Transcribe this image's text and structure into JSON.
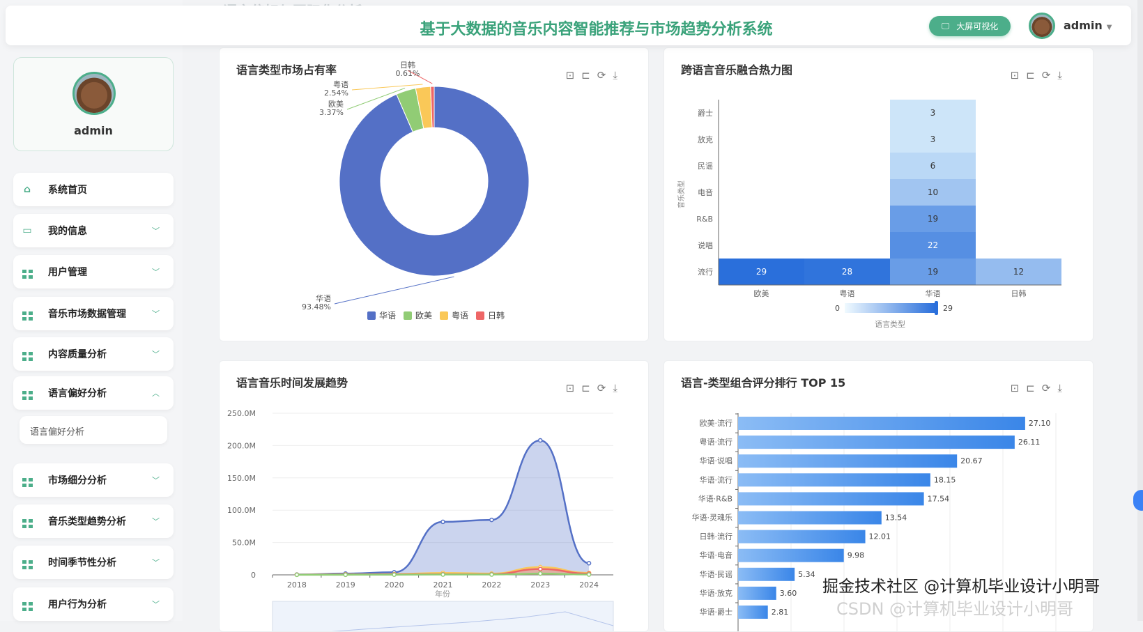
{
  "header": {
    "ghost_title": "语言偏好与国际化分析",
    "title": "基于大数据的音乐内容智能推荐与市场趋势分析系统",
    "bigscreen_label": "大屏可视化",
    "username": "admin"
  },
  "sidebar": {
    "username": "admin",
    "items": [
      {
        "label": "系统首页",
        "icon": "home-icon"
      },
      {
        "label": "我的信息",
        "icon": "card-icon",
        "chevron": "down"
      },
      {
        "label": "用户管理",
        "icon": "grid-icon",
        "chevron": "down"
      },
      {
        "label": "音乐市场数据管理",
        "icon": "grid-icon",
        "chevron": "down"
      },
      {
        "label": "内容质量分析",
        "icon": "grid-icon",
        "chevron": "down"
      },
      {
        "label": "语言偏好分析",
        "icon": "grid-icon",
        "chevron": "up",
        "expanded": true
      },
      {
        "label": "市场细分分析",
        "icon": "grid-icon",
        "chevron": "down"
      },
      {
        "label": "音乐类型趋势分析",
        "icon": "grid-icon",
        "chevron": "down"
      },
      {
        "label": "时间季节性分析",
        "icon": "grid-icon",
        "chevron": "down"
      },
      {
        "label": "用户行为分析",
        "icon": "grid-icon",
        "chevron": "down"
      }
    ],
    "sub_item": "语言偏好分析"
  },
  "watermark": {
    "line1": "掘金技术社区 @计算机毕业设计小明哥",
    "line2": "CSDN @计算机毕业设计小明哥"
  },
  "chart_data": [
    {
      "type": "pie",
      "title": "语言类型市场占有率",
      "donut": true,
      "slices": [
        {
          "name": "华语",
          "value": 93.48,
          "label": "93.48%",
          "color": "#5470c6"
        },
        {
          "name": "欧美",
          "value": 3.37,
          "label": "3.37%",
          "color": "#91cc75"
        },
        {
          "name": "粤语",
          "value": 2.54,
          "label": "2.54%",
          "color": "#fac858"
        },
        {
          "name": "日韩",
          "value": 0.61,
          "label": "0.61%",
          "color": "#ee6666"
        }
      ],
      "legend": "bottom"
    },
    {
      "type": "heatmap",
      "title": "跨语言音乐融合热力图",
      "xlabel": "语言类型",
      "ylabel": "音乐类型",
      "x": [
        "欧美",
        "粤语",
        "华语",
        "日韩"
      ],
      "y": [
        "流行",
        "说唱",
        "R&B",
        "电音",
        "民谣",
        "放克",
        "爵士"
      ],
      "cells": [
        [
          "欧美",
          "流行",
          29
        ],
        [
          "粤语",
          "流行",
          28
        ],
        [
          "华语",
          "流行",
          19
        ],
        [
          "日韩",
          "流行",
          12
        ],
        [
          "华语",
          "说唱",
          22
        ],
        [
          "华语",
          "R&B",
          19
        ],
        [
          "华语",
          "电音",
          10
        ],
        [
          "华语",
          "民谣",
          6
        ],
        [
          "华语",
          "放克",
          3
        ],
        [
          "华语",
          "爵士",
          3
        ]
      ],
      "visual_map": {
        "min": 0,
        "max": 29,
        "colors": [
          "#e0f3fd",
          "#2a6fdb"
        ],
        "min_label": "0",
        "max_label": "29"
      }
    },
    {
      "type": "area",
      "title": "语言音乐时间发展趋势",
      "xlabel": "年份",
      "x": [
        "2018",
        "2019",
        "2020",
        "2021",
        "2022",
        "2023",
        "2024"
      ],
      "yticks": [
        "0",
        "50.0M",
        "100.0M",
        "150.0M",
        "200.0M",
        "250.0M"
      ],
      "ylim": [
        0,
        250
      ],
      "yunit": "M",
      "series": [
        {
          "color": "#5470c6",
          "values": [
            0.5,
            2,
            4,
            82,
            85,
            208,
            18
          ]
        },
        {
          "color": "#fac858",
          "values": [
            0.3,
            0.8,
            1.2,
            3,
            2,
            12,
            3
          ]
        },
        {
          "color": "#ee6666",
          "values": [
            0.3,
            0.5,
            0.8,
            1,
            1,
            9,
            2
          ]
        },
        {
          "color": "#91cc75",
          "values": [
            0.1,
            0.2,
            0.3,
            0.5,
            0.5,
            2,
            0.5
          ]
        }
      ],
      "grid": true,
      "datazoom": true
    },
    {
      "type": "bar",
      "orientation": "horizontal",
      "title": "语言-类型组合评分排行 TOP 15",
      "categories": [
        "欧美·流行",
        "粤语·流行",
        "华语·说唱",
        "华语·流行",
        "华语·R&B",
        "华语·灵魂乐",
        "日韩·流行",
        "华语·电音",
        "华语·民谣",
        "华语·放克",
        "华语·爵士"
      ],
      "values": [
        27.1,
        26.11,
        20.67,
        18.15,
        17.54,
        13.54,
        12.01,
        9.98,
        5.34,
        3.6,
        2.81
      ],
      "value_labels": [
        "27.10",
        "26.11",
        "20.67",
        "18.15",
        "17.54",
        "13.54",
        "12.01",
        "9.98",
        "5.34",
        "3.60",
        "2.81"
      ],
      "xlim": [
        0,
        30
      ],
      "color": [
        "#8bbcf5",
        "#3a86e8"
      ]
    }
  ],
  "toolbox": {
    "icons": [
      "zoom-icon",
      "zoom-reset-icon",
      "restore-icon",
      "download-icon"
    ],
    "glyphs": [
      "⊡",
      "⊏",
      "⟳",
      "⤓"
    ]
  }
}
